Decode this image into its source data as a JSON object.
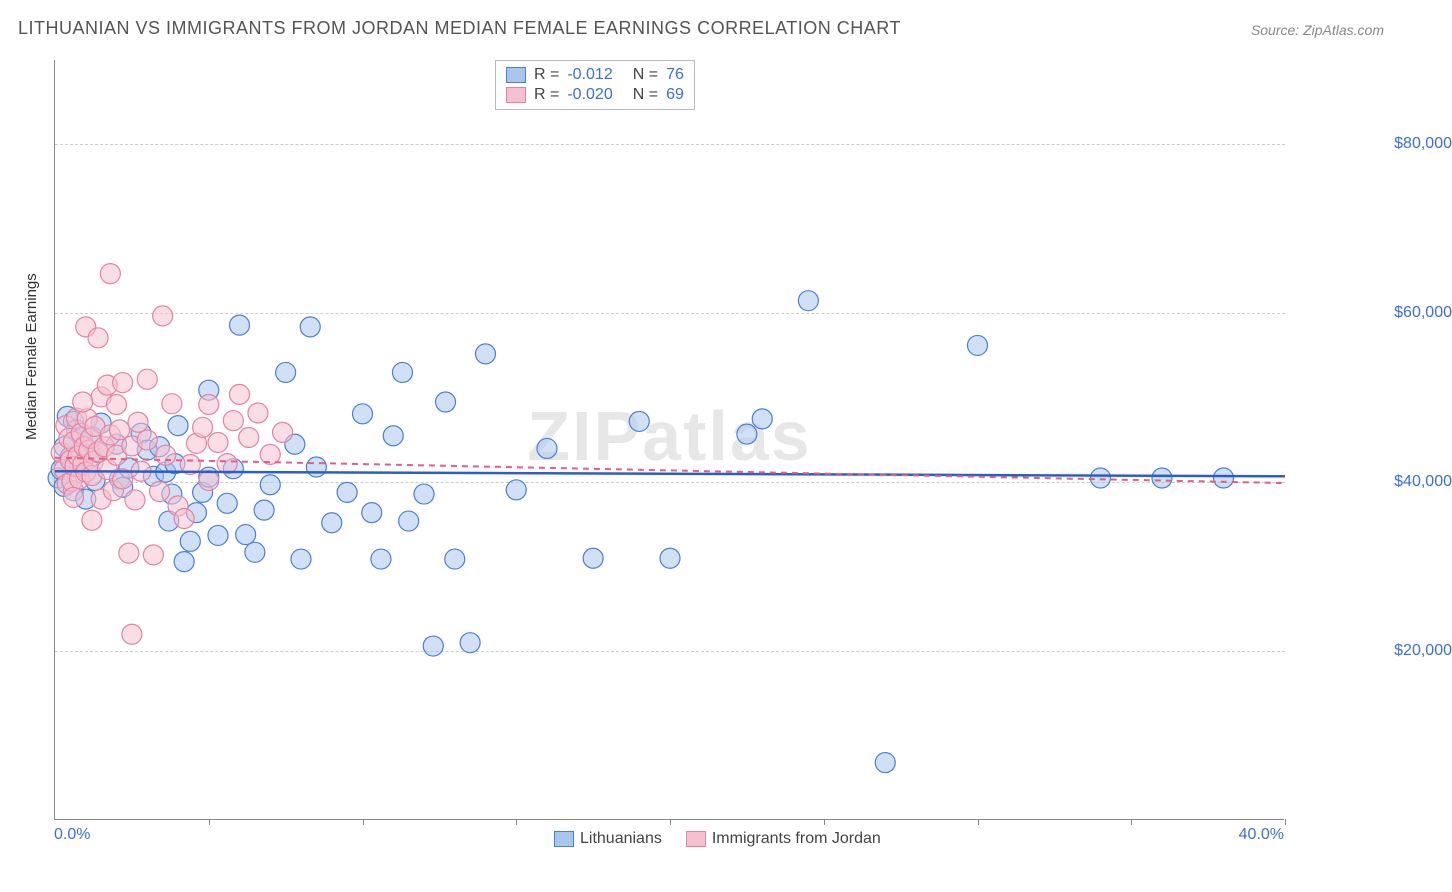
{
  "title": "LITHUANIAN VS IMMIGRANTS FROM JORDAN MEDIAN FEMALE EARNINGS CORRELATION CHART",
  "source": "Source: ZipAtlas.com",
  "watermark": "ZIPatlas",
  "ylabel": "Median Female Earnings",
  "xaxis": {
    "min_label": "0.0%",
    "max_label": "40.0%",
    "min": 0,
    "max": 40,
    "tick_step": 5
  },
  "yaxis": {
    "min": 0,
    "max": 90000,
    "ticks": [
      20000,
      40000,
      60000,
      80000
    ],
    "tick_labels": [
      "$20,000",
      "$40,000",
      "$60,000",
      "$80,000"
    ]
  },
  "legend_top": [
    {
      "swatch_fill": "#a9c7ee",
      "swatch_border": "#4b7fd0",
      "r_label": "R =",
      "r_value": "-0.012",
      "n_label": "N =",
      "n_value": "76"
    },
    {
      "swatch_fill": "#f6c1cf",
      "swatch_border": "#e483a1",
      "r_label": "R =",
      "r_value": "-0.020",
      "n_label": "N =",
      "n_value": "69"
    }
  ],
  "legend_bottom": [
    {
      "swatch_fill": "#a9c7ee",
      "swatch_border": "#4b7fd0",
      "label": "Lithuanians"
    },
    {
      "swatch_fill": "#f6c1cf",
      "swatch_border": "#e483a1",
      "label": "Immigrants from Jordan"
    }
  ],
  "styles": {
    "title_color": "#555555",
    "title_fontsize": 18,
    "tick_color": "#3b6fd6",
    "grid_color": "#cccccc",
    "axis_color": "#888888",
    "background": "#ffffff",
    "marker_radius": 10,
    "marker_opacity": 0.55
  },
  "series": [
    {
      "name": "Lithuanians",
      "fill": "#a9c7ee",
      "stroke": "#4b7fd0",
      "trend": {
        "color": "#2a5fc7",
        "width": 2.5,
        "dash": "none",
        "y_start": 41300,
        "y_end": 40700
      },
      "points": [
        [
          0.1,
          40500
        ],
        [
          0.2,
          41500
        ],
        [
          0.3,
          39500
        ],
        [
          0.3,
          44200
        ],
        [
          0.4,
          47800
        ],
        [
          0.5,
          43000
        ],
        [
          0.6,
          39000
        ],
        [
          0.6,
          47200
        ],
        [
          0.7,
          46200
        ],
        [
          0.8,
          41800
        ],
        [
          0.9,
          45400
        ],
        [
          1.0,
          38000
        ],
        [
          1.1,
          42800
        ],
        [
          1.2,
          45400
        ],
        [
          1.3,
          40200
        ],
        [
          1.4,
          43500
        ],
        [
          1.5,
          47000
        ],
        [
          2.0,
          44500
        ],
        [
          2.1,
          40400
        ],
        [
          2.2,
          39400
        ],
        [
          2.4,
          41700
        ],
        [
          2.8,
          45800
        ],
        [
          3.0,
          43800
        ],
        [
          3.2,
          40700
        ],
        [
          3.4,
          44200
        ],
        [
          3.6,
          41200
        ],
        [
          3.7,
          35400
        ],
        [
          3.8,
          38600
        ],
        [
          3.9,
          42200
        ],
        [
          4.0,
          46700
        ],
        [
          4.2,
          30600
        ],
        [
          4.4,
          33000
        ],
        [
          4.6,
          36400
        ],
        [
          4.8,
          38800
        ],
        [
          5.0,
          40600
        ],
        [
          5.0,
          50900
        ],
        [
          5.3,
          33700
        ],
        [
          5.6,
          37500
        ],
        [
          5.8,
          41600
        ],
        [
          6.0,
          58600
        ],
        [
          6.2,
          33800
        ],
        [
          6.5,
          31700
        ],
        [
          6.8,
          36700
        ],
        [
          7.0,
          39700
        ],
        [
          7.5,
          53000
        ],
        [
          7.8,
          44500
        ],
        [
          8.0,
          30900
        ],
        [
          8.3,
          58400
        ],
        [
          8.5,
          41800
        ],
        [
          9.0,
          35200
        ],
        [
          9.5,
          38800
        ],
        [
          10.0,
          48100
        ],
        [
          10.3,
          36400
        ],
        [
          10.6,
          30900
        ],
        [
          11.0,
          45500
        ],
        [
          11.3,
          53000
        ],
        [
          11.5,
          35400
        ],
        [
          12.0,
          38600
        ],
        [
          12.3,
          20600
        ],
        [
          12.7,
          49500
        ],
        [
          13.0,
          30900
        ],
        [
          13.5,
          21000
        ],
        [
          14.0,
          55200
        ],
        [
          15.0,
          39100
        ],
        [
          16.0,
          44000
        ],
        [
          17.5,
          31000
        ],
        [
          19.0,
          47200
        ],
        [
          20.0,
          31000
        ],
        [
          22.5,
          45700
        ],
        [
          23.0,
          47500
        ],
        [
          24.5,
          61500
        ],
        [
          27.0,
          6800
        ],
        [
          30.0,
          56200
        ],
        [
          34.0,
          40500
        ],
        [
          36.0,
          40500
        ],
        [
          38.0,
          40500
        ]
      ]
    },
    {
      "name": "Immigrants from Jordan",
      "fill": "#f6c1cf",
      "stroke": "#e483a1",
      "trend": {
        "color": "#e05f85",
        "width": 2,
        "dash": "6,5",
        "y_start": 42900,
        "y_end": 39900
      },
      "points": [
        [
          0.2,
          43500
        ],
        [
          0.3,
          41500
        ],
        [
          0.35,
          46700
        ],
        [
          0.4,
          39800
        ],
        [
          0.45,
          45200
        ],
        [
          0.5,
          42600
        ],
        [
          0.55,
          40100
        ],
        [
          0.6,
          44800
        ],
        [
          0.65,
          41900
        ],
        [
          0.7,
          47600
        ],
        [
          0.75,
          43100
        ],
        [
          0.8,
          40400
        ],
        [
          0.85,
          45800
        ],
        [
          0.9,
          42100
        ],
        [
          0.95,
          44200
        ],
        [
          1.0,
          41200
        ],
        [
          1.0,
          58400
        ],
        [
          1.05,
          47500
        ],
        [
          1.1,
          43800
        ],
        [
          1.15,
          45200
        ],
        [
          1.2,
          40800
        ],
        [
          1.25,
          42500
        ],
        [
          1.3,
          46600
        ],
        [
          1.4,
          43600
        ],
        [
          1.4,
          57100
        ],
        [
          1.5,
          38000
        ],
        [
          1.5,
          50100
        ],
        [
          1.6,
          44200
        ],
        [
          1.7,
          41500
        ],
        [
          1.7,
          51500
        ],
        [
          1.8,
          45600
        ],
        [
          1.8,
          64700
        ],
        [
          1.9,
          39000
        ],
        [
          2.0,
          43200
        ],
        [
          2.0,
          49200
        ],
        [
          2.1,
          46200
        ],
        [
          2.2,
          40400
        ],
        [
          2.2,
          51800
        ],
        [
          2.4,
          31600
        ],
        [
          2.5,
          44300
        ],
        [
          2.6,
          37900
        ],
        [
          2.7,
          47100
        ],
        [
          2.8,
          41300
        ],
        [
          3.0,
          45000
        ],
        [
          3.0,
          52200
        ],
        [
          3.2,
          31400
        ],
        [
          3.4,
          38900
        ],
        [
          3.5,
          59700
        ],
        [
          3.6,
          43200
        ],
        [
          3.8,
          49300
        ],
        [
          4.0,
          37200
        ],
        [
          4.2,
          35700
        ],
        [
          4.4,
          42100
        ],
        [
          4.6,
          44600
        ],
        [
          4.8,
          46500
        ],
        [
          5.0,
          40200
        ],
        [
          5.0,
          49200
        ],
        [
          5.3,
          44700
        ],
        [
          5.6,
          42200
        ],
        [
          5.8,
          47300
        ],
        [
          6.0,
          50400
        ],
        [
          6.3,
          45300
        ],
        [
          6.6,
          48200
        ],
        [
          7.0,
          43300
        ],
        [
          7.4,
          45900
        ],
        [
          2.5,
          22000
        ],
        [
          1.2,
          35500
        ],
        [
          0.9,
          49500
        ],
        [
          0.6,
          38200
        ]
      ]
    }
  ]
}
